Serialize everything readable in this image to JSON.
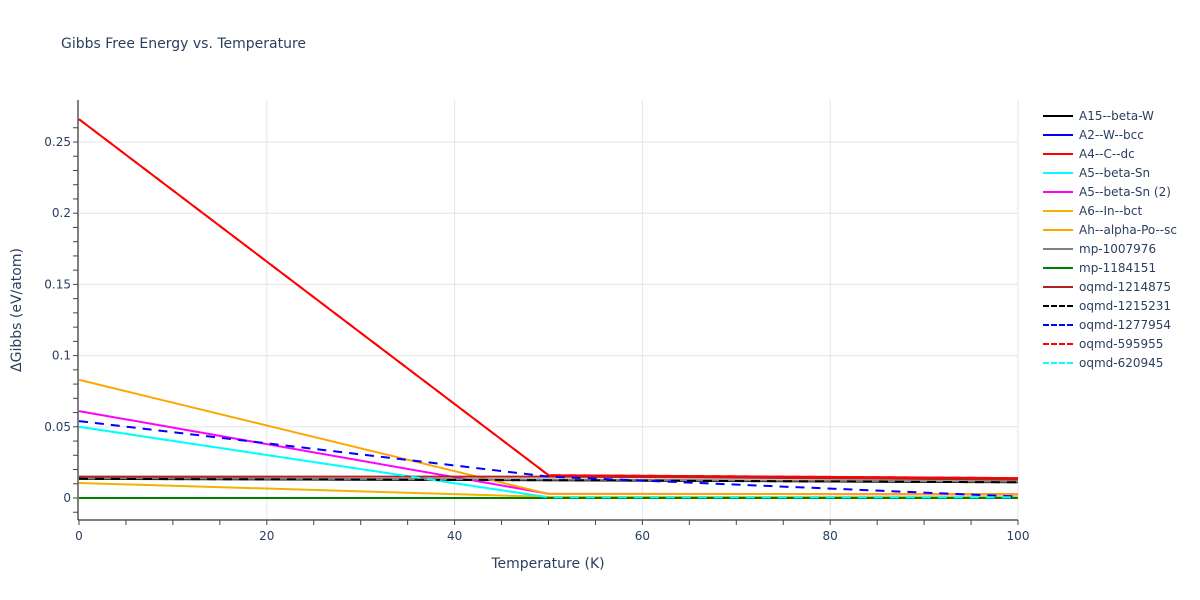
{
  "chart_data": {
    "type": "line",
    "title": "Gibbs Free Energy vs. Temperature",
    "xlabel": "Temperature (K)",
    "ylabel": "ΔGibbs (eV/atom)",
    "xlim": [
      0,
      100
    ],
    "ylim": [
      -0.015,
      0.28
    ],
    "xticks": [
      0,
      20,
      40,
      60,
      80,
      100
    ],
    "xtick_labels": [
      "0",
      "20",
      "40",
      "60",
      "80",
      "100"
    ],
    "yticks": [
      0,
      0.05,
      0.1,
      0.15,
      0.2,
      0.25
    ],
    "ytick_labels": [
      "0",
      "0.05",
      "0.1",
      "0.15",
      "0.2",
      "0.25"
    ],
    "grid": true,
    "legend_position": "right",
    "x": [
      0,
      50,
      100
    ],
    "series": [
      {
        "name": "A15--beta-W",
        "color": "#000000",
        "dash": "solid",
        "values": [
          0.0135,
          0.0125,
          0.011
        ]
      },
      {
        "name": "A2--W--bcc",
        "color": "#0000ff",
        "dash": "solid",
        "values": [
          0.0,
          0.0,
          0.0
        ]
      },
      {
        "name": "A4--C--dc",
        "color": "#ff0000",
        "dash": "solid",
        "values": [
          0.266,
          0.016,
          0.014
        ]
      },
      {
        "name": "A5--beta-Sn",
        "color": "#00ffff",
        "dash": "solid",
        "values": [
          0.05,
          0.0005,
          0.0005
        ]
      },
      {
        "name": "A5--beta-Sn (2)",
        "color": "#ff00ff",
        "dash": "solid",
        "values": [
          0.061,
          0.003,
          0.0025
        ]
      },
      {
        "name": "A6--In--bct",
        "color": "#f0b400",
        "dash": "solid",
        "values": [
          0.0105,
          0.0008,
          0.0005
        ]
      },
      {
        "name": "Ah--alpha-Po--sc",
        "color": "#ffa500",
        "dash": "solid",
        "values": [
          0.083,
          0.0028,
          0.0028
        ]
      },
      {
        "name": "mp-1007976",
        "color": "#808080",
        "dash": "solid",
        "values": [
          0.014,
          0.013,
          0.0115
        ]
      },
      {
        "name": "mp-1184151",
        "color": "#008000",
        "dash": "solid",
        "values": [
          0.0,
          0.0,
          0.0
        ]
      },
      {
        "name": "oqmd-1214875",
        "color": "#b22222",
        "dash": "solid",
        "values": [
          0.015,
          0.015,
          0.013
        ]
      },
      {
        "name": "oqmd-1215231",
        "color": "#000000",
        "dash": "dash",
        "values": [
          0.0135,
          0.0125,
          0.011
        ]
      },
      {
        "name": "oqmd-1277954",
        "color": "#0000ff",
        "dash": "dash",
        "values": [
          0.054,
          0.015,
          0.001
        ]
      },
      {
        "name": "oqmd-595955",
        "color": "#ff0000",
        "dash": "dash",
        "values": [
          0.266,
          0.016,
          0.014
        ]
      },
      {
        "name": "oqmd-620945",
        "color": "#00ffff",
        "dash": "dash",
        "values": [
          0.05,
          0.0005,
          0.0005
        ]
      }
    ]
  }
}
